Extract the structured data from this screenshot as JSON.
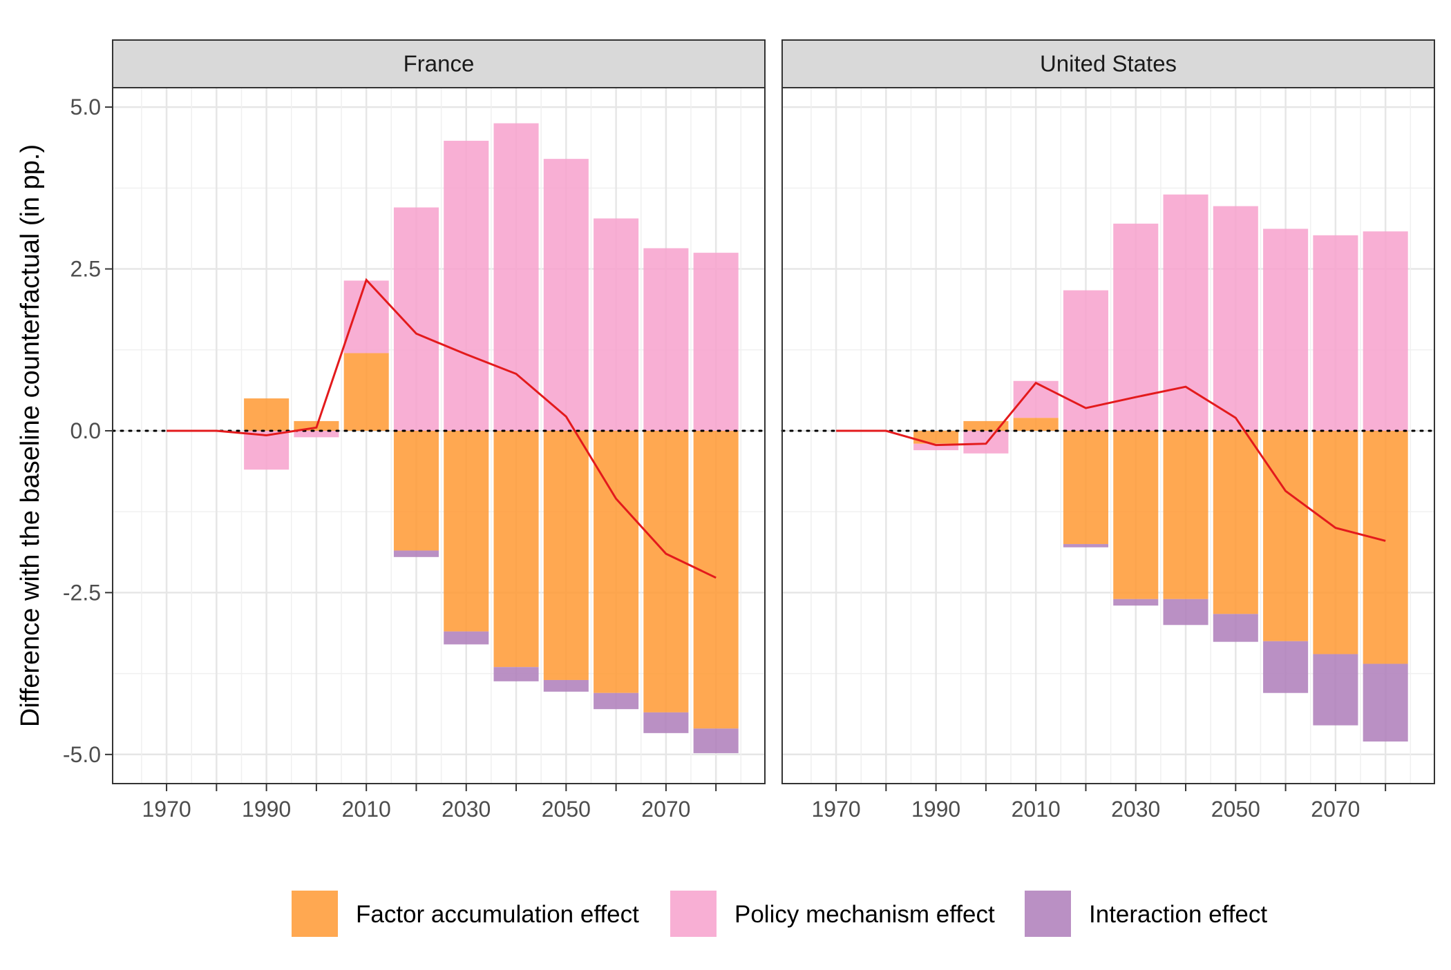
{
  "chart_data": {
    "type": "bar",
    "ylabel": "Difference with the baseline counterfactual (in pp.)",
    "xlabel": "",
    "ylim": [
      -5.45,
      5.3
    ],
    "xlim": [
      1959.2,
      2089.8
    ],
    "x_ticks": [
      "1970",
      "1990",
      "2010",
      "2030",
      "2050",
      "2070"
    ],
    "y_ticks": [
      "5.0",
      "2.5",
      "0.0",
      "-2.5",
      "-5.0"
    ],
    "grid": true,
    "baseline_reference": 0,
    "legend_position": "bottom",
    "colors": {
      "factor": "#ff9933",
      "policy": "#f7a1cc",
      "interaction": "#ae7cba",
      "line": "#e31a1c"
    },
    "series_names": {
      "factor": "Factor accumulation effect",
      "policy": "Policy mechanism effect",
      "interaction": "Interaction effect"
    },
    "panels": [
      {
        "title": "France",
        "x": [
          1970,
          1980,
          1990,
          2000,
          2010,
          2020,
          2030,
          2040,
          2050,
          2060,
          2070,
          2080
        ],
        "factor": [
          0,
          0,
          0.5,
          0.15,
          1.2,
          -1.85,
          -3.1,
          -3.65,
          -3.85,
          -4.05,
          -4.35,
          -4.6
        ],
        "policy": [
          0,
          0,
          -0.6,
          -0.1,
          1.12,
          3.45,
          4.48,
          4.75,
          4.2,
          3.28,
          2.82,
          2.75
        ],
        "interaction": [
          0,
          0,
          0,
          0,
          0,
          -0.1,
          -0.2,
          -0.22,
          -0.18,
          -0.25,
          -0.32,
          -0.38
        ],
        "total": [
          0,
          0,
          -0.07,
          0.05,
          2.33,
          1.5,
          1.18,
          0.88,
          0.22,
          -1.05,
          -1.9,
          -2.27
        ]
      },
      {
        "title": "United States",
        "x": [
          1970,
          1980,
          1990,
          2000,
          2010,
          2020,
          2030,
          2040,
          2050,
          2060,
          2070,
          2080
        ],
        "factor": [
          0,
          0,
          -0.2,
          0.15,
          0.2,
          -1.75,
          -2.6,
          -2.6,
          -2.83,
          -3.25,
          -3.45,
          -3.6
        ],
        "policy": [
          0,
          0,
          -0.1,
          -0.35,
          0.57,
          2.17,
          3.2,
          3.65,
          3.47,
          3.12,
          3.02,
          3.08
        ],
        "interaction": [
          0,
          0,
          0,
          0,
          0,
          -0.05,
          -0.1,
          -0.4,
          -0.43,
          -0.8,
          -1.1,
          -1.2
        ],
        "total": [
          0,
          0,
          -0.22,
          -0.2,
          0.74,
          0.35,
          0.52,
          0.68,
          0.2,
          -0.93,
          -1.5,
          -1.7
        ]
      }
    ]
  }
}
